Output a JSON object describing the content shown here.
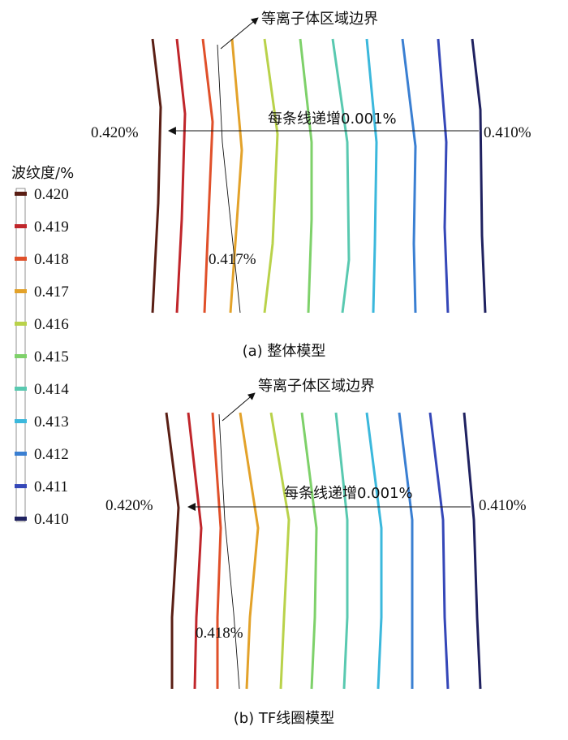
{
  "legend": {
    "title": "波纹度/%",
    "entries": [
      {
        "label": "0.420",
        "color": "#5a1e14"
      },
      {
        "label": "0.419",
        "color": "#c0262b"
      },
      {
        "label": "0.418",
        "color": "#e0502a"
      },
      {
        "label": "0.417",
        "color": "#e3a22a"
      },
      {
        "label": "0.416",
        "color": "#b9d24a"
      },
      {
        "label": "0.415",
        "color": "#7ed16a"
      },
      {
        "label": "0.414",
        "color": "#59c9b0"
      },
      {
        "label": "0.413",
        "color": "#3bb8dc"
      },
      {
        "label": "0.412",
        "color": "#3a7fd2"
      },
      {
        "label": "0.411",
        "color": "#3547b8"
      },
      {
        "label": "0.410",
        "color": "#1f2160"
      }
    ]
  },
  "panels": [
    {
      "boundary_label": "等离子体区域边界",
      "increment_label": "每条线递增0.001%",
      "left_value": "0.420%",
      "right_value": "0.410%",
      "marker_value": "0.417%",
      "caption": "(a) 整体模型"
    },
    {
      "boundary_label": "等离子体区域边界",
      "increment_label": "每条线递增0.001%",
      "left_value": "0.420%",
      "right_value": "0.410%",
      "marker_value": "0.418%",
      "caption": "(b) TF线圈模型"
    }
  ]
}
